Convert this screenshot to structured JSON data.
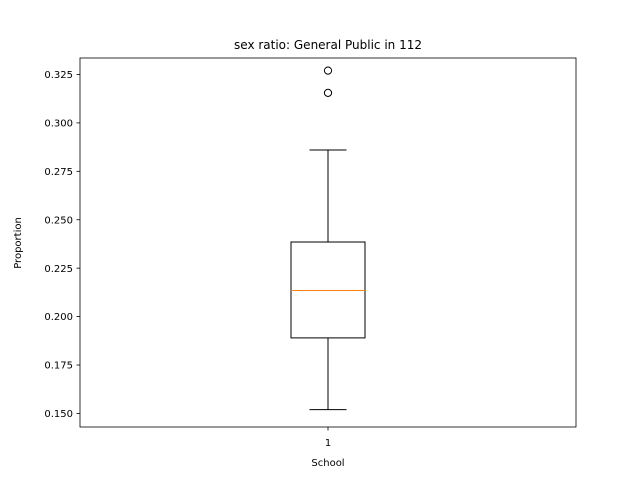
{
  "chart_data": {
    "type": "box",
    "title": "sex ratio: General Public in 112",
    "xlabel": "School",
    "ylabel": "Proportion",
    "categories": [
      "1"
    ],
    "ylim": [
      0.143,
      0.3335
    ],
    "yticks": [
      0.15,
      0.175,
      0.2,
      0.225,
      0.25,
      0.275,
      0.3,
      0.325
    ],
    "ytick_labels": [
      "0.150",
      "0.175",
      "0.200",
      "0.225",
      "0.250",
      "0.275",
      "0.300",
      "0.325"
    ],
    "boxes": [
      {
        "category": "1",
        "whisker_low": 0.152,
        "q1": 0.189,
        "median": 0.2135,
        "q3": 0.2385,
        "whisker_high": 0.286,
        "outliers": [
          0.3155,
          0.327
        ]
      }
    ],
    "grid": false,
    "colors": {
      "box": "#000000",
      "median": "#ff7f0e",
      "whisker": "#000000",
      "flier": "#000000"
    }
  }
}
